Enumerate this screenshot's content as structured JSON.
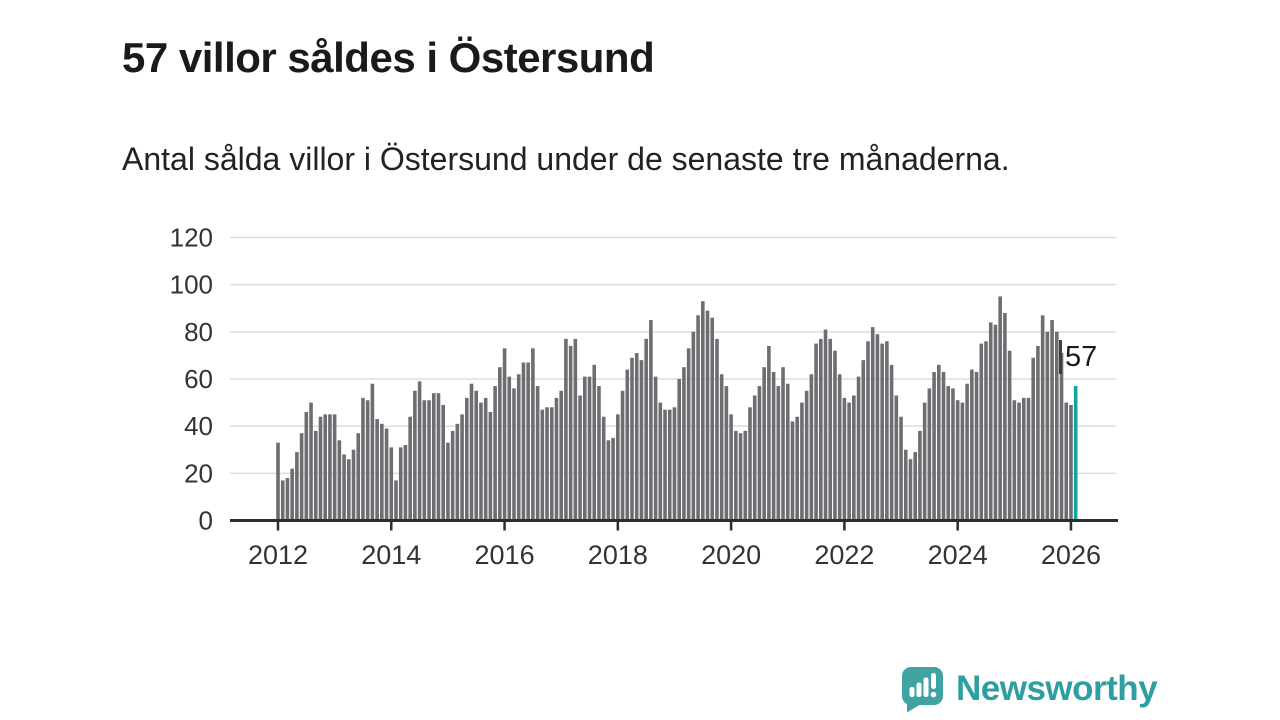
{
  "header": {
    "title": "57 villor såldes i Östersund",
    "subtitle": "Antal sålda villor i Östersund under de senaste tre månaderna."
  },
  "chart_data": {
    "type": "bar",
    "title": "57 villor såldes i Östersund",
    "xlabel": "",
    "ylabel": "",
    "frequency": "monthly",
    "start_year": 2012,
    "start_month": 1,
    "end_label": "2026-02",
    "ylim": [
      0,
      120
    ],
    "yticks": [
      0,
      20,
      40,
      60,
      80,
      100,
      120
    ],
    "xticks": [
      2012,
      2014,
      2016,
      2018,
      2020,
      2022,
      2024,
      2026
    ],
    "grid": "horizontal",
    "legend": "none",
    "values": [
      33,
      17,
      18,
      22,
      29,
      37,
      46,
      50,
      38,
      44,
      45,
      45,
      45,
      34,
      28,
      26,
      30,
      37,
      52,
      51,
      58,
      43,
      41,
      39,
      31,
      17,
      31,
      32,
      44,
      55,
      59,
      51,
      51,
      54,
      54,
      49,
      33,
      38,
      41,
      45,
      52,
      58,
      55,
      50,
      52,
      46,
      57,
      65,
      73,
      61,
      56,
      62,
      67,
      67,
      73,
      57,
      47,
      48,
      48,
      52,
      55,
      77,
      74,
      77,
      53,
      61,
      61,
      66,
      57,
      44,
      34,
      35,
      45,
      55,
      64,
      69,
      71,
      68,
      77,
      85,
      61,
      50,
      47,
      47,
      48,
      60,
      65,
      73,
      80,
      87,
      93,
      89,
      86,
      77,
      62,
      57,
      45,
      38,
      37,
      38,
      48,
      53,
      57,
      65,
      74,
      63,
      57,
      65,
      58,
      42,
      44,
      50,
      55,
      62,
      75,
      77,
      81,
      77,
      72,
      62,
      52,
      50,
      53,
      61,
      68,
      76,
      82,
      79,
      75,
      76,
      66,
      53,
      44,
      30,
      26,
      29,
      38,
      50,
      56,
      63,
      66,
      63,
      57,
      56,
      51,
      50,
      58,
      64,
      63,
      75,
      76,
      84,
      83,
      95,
      88,
      72,
      51,
      50,
      52,
      52,
      69,
      74,
      87,
      80,
      85,
      80,
      71,
      50,
      49,
      57
    ],
    "highlight_index": 169,
    "annotation": {
      "text": "57"
    },
    "colors": {
      "bar": "#6e6e72",
      "highlight": "#14a3a3",
      "gridline": "#dddddd",
      "axis": "#2d2d2d",
      "tick_label": "#333333"
    }
  },
  "footer": {
    "brand": "Newsworthy",
    "brand_color": "#2d9fa1",
    "logo_icon": "chart-speech-bubble-icon"
  }
}
